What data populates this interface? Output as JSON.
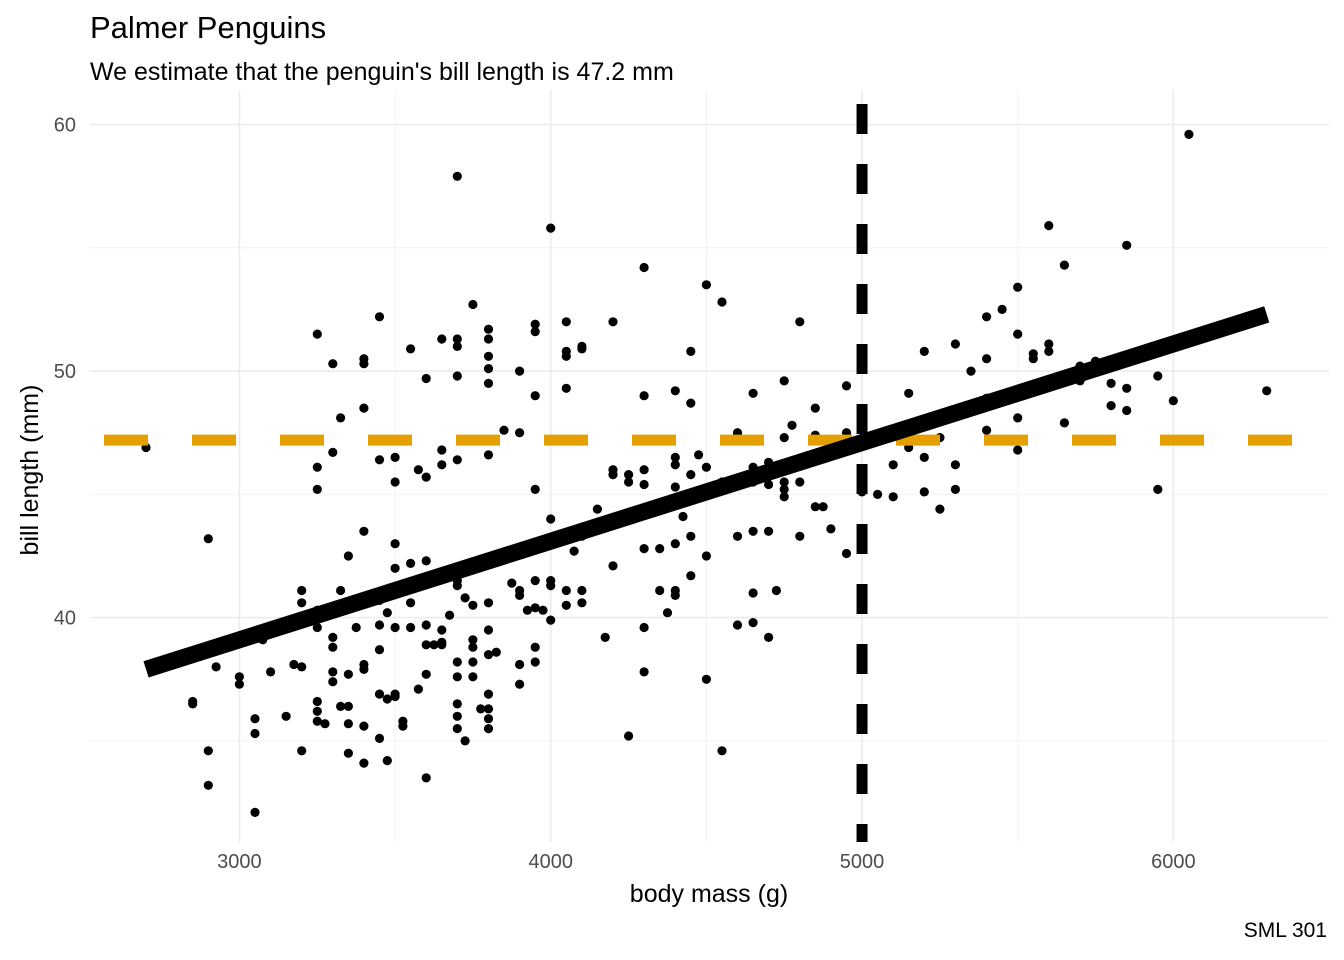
{
  "chart_data": {
    "type": "scatter",
    "title": "Palmer Penguins",
    "subtitle": "We estimate that the penguin's bill length is 47.2 mm",
    "caption": "SML 301",
    "xlabel": "body mass (g)",
    "ylabel": "bill length (mm)",
    "xlim": [
      2520,
      6500
    ],
    "ylim": [
      30.9,
      61.4
    ],
    "x_ticks": [
      3000,
      4000,
      5000,
      6000
    ],
    "x_tick_labels": [
      "3000",
      "4000",
      "5000",
      "6000"
    ],
    "y_ticks": [
      40,
      50,
      60
    ],
    "y_tick_labels": [
      "40",
      "50",
      "60"
    ],
    "grid": true,
    "regression_line": {
      "x": [
        2700,
        6300
      ],
      "y": [
        37.9,
        52.3
      ],
      "color": "#000000"
    },
    "reference_lines": [
      {
        "orientation": "vertical",
        "x": 5000,
        "color": "#000000",
        "style": "dashed"
      },
      {
        "orientation": "horizontal",
        "y": 47.2,
        "color": "#E69F00",
        "style": "dashed"
      }
    ],
    "point_color": "#000000",
    "points": [
      [
        2700,
        46.9
      ],
      [
        2850,
        36.6
      ],
      [
        2850,
        36.5
      ],
      [
        2900,
        43.2
      ],
      [
        2900,
        34.6
      ],
      [
        2900,
        33.2
      ],
      [
        2925,
        38.0
      ],
      [
        3000,
        37.6
      ],
      [
        3000,
        37.3
      ],
      [
        3050,
        35.9
      ],
      [
        3050,
        35.3
      ],
      [
        3050,
        32.1
      ],
      [
        3075,
        39.1
      ],
      [
        3100,
        37.8
      ],
      [
        3150,
        36.0
      ],
      [
        3175,
        38.1
      ],
      [
        3200,
        38.0
      ],
      [
        3200,
        41.1
      ],
      [
        3200,
        40.6
      ],
      [
        3200,
        34.6
      ],
      [
        3250,
        36.6
      ],
      [
        3250,
        35.8
      ],
      [
        3250,
        36.2
      ],
      [
        3250,
        39.6
      ],
      [
        3250,
        40.3
      ],
      [
        3250,
        46.1
      ],
      [
        3250,
        45.2
      ],
      [
        3250,
        51.5
      ],
      [
        3275,
        35.7
      ],
      [
        3300,
        38.8
      ],
      [
        3300,
        40.2
      ],
      [
        3300,
        39.2
      ],
      [
        3300,
        46.7
      ],
      [
        3300,
        50.3
      ],
      [
        3300,
        37.8
      ],
      [
        3300,
        37.4
      ],
      [
        3325,
        36.4
      ],
      [
        3325,
        41.1
      ],
      [
        3325,
        48.1
      ],
      [
        3350,
        34.5
      ],
      [
        3350,
        36.4
      ],
      [
        3350,
        35.7
      ],
      [
        3350,
        37.7
      ],
      [
        3350,
        42.5
      ],
      [
        3375,
        39.6
      ],
      [
        3400,
        35.6
      ],
      [
        3400,
        34.1
      ],
      [
        3400,
        38.1
      ],
      [
        3400,
        37.9
      ],
      [
        3400,
        43.5
      ],
      [
        3400,
        48.5
      ],
      [
        3400,
        50.5
      ],
      [
        3400,
        50.3
      ],
      [
        3425,
        40.8
      ],
      [
        3450,
        35.1
      ],
      [
        3450,
        36.9
      ],
      [
        3450,
        38.7
      ],
      [
        3450,
        41.0
      ],
      [
        3450,
        40.7
      ],
      [
        3450,
        39.7
      ],
      [
        3450,
        46.4
      ],
      [
        3450,
        52.2
      ],
      [
        3475,
        34.2
      ],
      [
        3475,
        36.7
      ],
      [
        3475,
        40.2
      ],
      [
        3500,
        36.9
      ],
      [
        3500,
        36.8
      ],
      [
        3500,
        39.6
      ],
      [
        3500,
        43.0
      ],
      [
        3500,
        42.0
      ],
      [
        3500,
        45.5
      ],
      [
        3500,
        46.5
      ],
      [
        3525,
        35.6
      ],
      [
        3525,
        35.8
      ],
      [
        3550,
        39.6
      ],
      [
        3550,
        40.6
      ],
      [
        3550,
        42.2
      ],
      [
        3550,
        50.9
      ],
      [
        3575,
        37.1
      ],
      [
        3575,
        46.0
      ],
      [
        3600,
        37.7
      ],
      [
        3600,
        33.5
      ],
      [
        3600,
        38.9
      ],
      [
        3600,
        39.7
      ],
      [
        3600,
        42.3
      ],
      [
        3600,
        45.7
      ],
      [
        3600,
        49.7
      ],
      [
        3625,
        38.9
      ],
      [
        3650,
        38.9
      ],
      [
        3650,
        39.0
      ],
      [
        3650,
        39.5
      ],
      [
        3650,
        46.2
      ],
      [
        3650,
        51.3
      ],
      [
        3650,
        46.8
      ],
      [
        3675,
        40.1
      ],
      [
        3700,
        36.5
      ],
      [
        3700,
        36.0
      ],
      [
        3700,
        37.6
      ],
      [
        3700,
        38.2
      ],
      [
        3700,
        35.5
      ],
      [
        3700,
        41.3
      ],
      [
        3700,
        41.5
      ],
      [
        3700,
        46.4
      ],
      [
        3700,
        49.8
      ],
      [
        3700,
        51.0
      ],
      [
        3700,
        51.3
      ],
      [
        3700,
        57.9
      ],
      [
        3725,
        40.8
      ],
      [
        3725,
        35.0
      ],
      [
        3750,
        37.6
      ],
      [
        3750,
        38.2
      ],
      [
        3750,
        38.8
      ],
      [
        3750,
        39.1
      ],
      [
        3750,
        40.5
      ],
      [
        3750,
        52.7
      ],
      [
        3775,
        36.3
      ],
      [
        3800,
        35.9
      ],
      [
        3800,
        35.5
      ],
      [
        3800,
        36.3
      ],
      [
        3800,
        36.9
      ],
      [
        3800,
        38.5
      ],
      [
        3800,
        39.5
      ],
      [
        3800,
        40.6
      ],
      [
        3800,
        46.6
      ],
      [
        3800,
        49.5
      ],
      [
        3800,
        50.1
      ],
      [
        3800,
        50.6
      ],
      [
        3800,
        51.7
      ],
      [
        3800,
        51.3
      ],
      [
        3825,
        38.6
      ],
      [
        3850,
        47.6
      ],
      [
        3875,
        41.4
      ],
      [
        3900,
        37.3
      ],
      [
        3900,
        38.1
      ],
      [
        3900,
        40.9
      ],
      [
        3900,
        41.1
      ],
      [
        3900,
        47.5
      ],
      [
        3900,
        50.0
      ],
      [
        3925,
        40.3
      ],
      [
        3950,
        38.2
      ],
      [
        3950,
        38.8
      ],
      [
        3950,
        40.4
      ],
      [
        3950,
        41.5
      ],
      [
        3950,
        45.2
      ],
      [
        3950,
        49.0
      ],
      [
        3950,
        51.6
      ],
      [
        3950,
        51.9
      ],
      [
        3975,
        40.3
      ],
      [
        4000,
        39.9
      ],
      [
        4000,
        41.3
      ],
      [
        4000,
        41.5
      ],
      [
        4000,
        44.0
      ],
      [
        4000,
        55.8
      ],
      [
        4050,
        40.5
      ],
      [
        4050,
        41.1
      ],
      [
        4050,
        49.3
      ],
      [
        4050,
        50.6
      ],
      [
        4050,
        50.8
      ],
      [
        4050,
        52.0
      ],
      [
        4075,
        42.7
      ],
      [
        4100,
        40.6
      ],
      [
        4100,
        41.1
      ],
      [
        4100,
        43.3
      ],
      [
        4100,
        50.9
      ],
      [
        4100,
        51.0
      ],
      [
        4150,
        44.4
      ],
      [
        4175,
        39.2
      ],
      [
        4200,
        42.1
      ],
      [
        4200,
        45.8
      ],
      [
        4200,
        46.0
      ],
      [
        4200,
        52.0
      ],
      [
        4250,
        45.8
      ],
      [
        4250,
        45.5
      ],
      [
        4250,
        35.2
      ],
      [
        4300,
        37.8
      ],
      [
        4300,
        39.6
      ],
      [
        4300,
        42.8
      ],
      [
        4300,
        45.4
      ],
      [
        4300,
        46.0
      ],
      [
        4300,
        49.0
      ],
      [
        4300,
        54.2
      ],
      [
        4350,
        41.1
      ],
      [
        4350,
        42.8
      ],
      [
        4375,
        40.2
      ],
      [
        4400,
        40.9
      ],
      [
        4400,
        41.1
      ],
      [
        4400,
        43.0
      ],
      [
        4400,
        44.6
      ],
      [
        4400,
        45.3
      ],
      [
        4400,
        46.2
      ],
      [
        4400,
        46.5
      ],
      [
        4400,
        49.2
      ],
      [
        4425,
        44.1
      ],
      [
        4450,
        41.7
      ],
      [
        4450,
        43.3
      ],
      [
        4450,
        45.8
      ],
      [
        4450,
        48.7
      ],
      [
        4450,
        50.8
      ],
      [
        4475,
        46.6
      ],
      [
        4500,
        37.5
      ],
      [
        4500,
        42.5
      ],
      [
        4500,
        46.1
      ],
      [
        4500,
        53.5
      ],
      [
        4550,
        34.6
      ],
      [
        4550,
        45.5
      ],
      [
        4550,
        52.8
      ],
      [
        4600,
        39.7
      ],
      [
        4600,
        43.3
      ],
      [
        4600,
        47.4
      ],
      [
        4600,
        47.5
      ],
      [
        4650,
        39.8
      ],
      [
        4650,
        41.0
      ],
      [
        4650,
        43.5
      ],
      [
        4650,
        45.5
      ],
      [
        4650,
        45.7
      ],
      [
        4650,
        46.1
      ],
      [
        4650,
        49.1
      ],
      [
        4700,
        39.2
      ],
      [
        4700,
        43.5
      ],
      [
        4700,
        45.4
      ],
      [
        4700,
        46.0
      ],
      [
        4700,
        46.3
      ],
      [
        4725,
        41.1
      ],
      [
        4750,
        44.9
      ],
      [
        4750,
        45.2
      ],
      [
        4750,
        45.5
      ],
      [
        4750,
        47.3
      ],
      [
        4750,
        49.6
      ],
      [
        4775,
        47.8
      ],
      [
        4800,
        43.3
      ],
      [
        4800,
        45.5
      ],
      [
        4800,
        52.0
      ],
      [
        4850,
        44.5
      ],
      [
        4850,
        48.5
      ],
      [
        4850,
        47.4
      ],
      [
        4875,
        44.5
      ],
      [
        4900,
        43.6
      ],
      [
        4900,
        46.8
      ],
      [
        4950,
        42.6
      ],
      [
        4950,
        47.5
      ],
      [
        4950,
        49.4
      ],
      [
        5000,
        45.1
      ],
      [
        5000,
        45.7
      ],
      [
        5000,
        45.3
      ],
      [
        5050,
        45.0
      ],
      [
        5100,
        44.9
      ],
      [
        5100,
        46.2
      ],
      [
        5150,
        49.1
      ],
      [
        5150,
        46.9
      ],
      [
        5200,
        46.5
      ],
      [
        5200,
        45.1
      ],
      [
        5200,
        50.8
      ],
      [
        5250,
        44.4
      ],
      [
        5250,
        47.3
      ],
      [
        5300,
        45.2
      ],
      [
        5300,
        46.2
      ],
      [
        5300,
        51.1
      ],
      [
        5350,
        50.0
      ],
      [
        5400,
        47.6
      ],
      [
        5400,
        48.9
      ],
      [
        5400,
        50.5
      ],
      [
        5400,
        52.2
      ],
      [
        5450,
        52.5
      ],
      [
        5500,
        46.8
      ],
      [
        5500,
        48.1
      ],
      [
        5500,
        51.5
      ],
      [
        5500,
        53.4
      ],
      [
        5550,
        49.3
      ],
      [
        5550,
        50.5
      ],
      [
        5550,
        50.7
      ],
      [
        5600,
        49.5
      ],
      [
        5600,
        50.8
      ],
      [
        5600,
        51.1
      ],
      [
        5600,
        55.9
      ],
      [
        5650,
        47.9
      ],
      [
        5650,
        49.8
      ],
      [
        5650,
        54.3
      ],
      [
        5700,
        49.6
      ],
      [
        5700,
        50.2
      ],
      [
        5750,
        50.4
      ],
      [
        5800,
        48.6
      ],
      [
        5800,
        49.5
      ],
      [
        5850,
        48.4
      ],
      [
        5850,
        49.3
      ],
      [
        5850,
        55.1
      ],
      [
        5950,
        45.2
      ],
      [
        5950,
        49.8
      ],
      [
        6000,
        48.8
      ],
      [
        6050,
        59.6
      ],
      [
        6300,
        49.2
      ]
    ]
  }
}
